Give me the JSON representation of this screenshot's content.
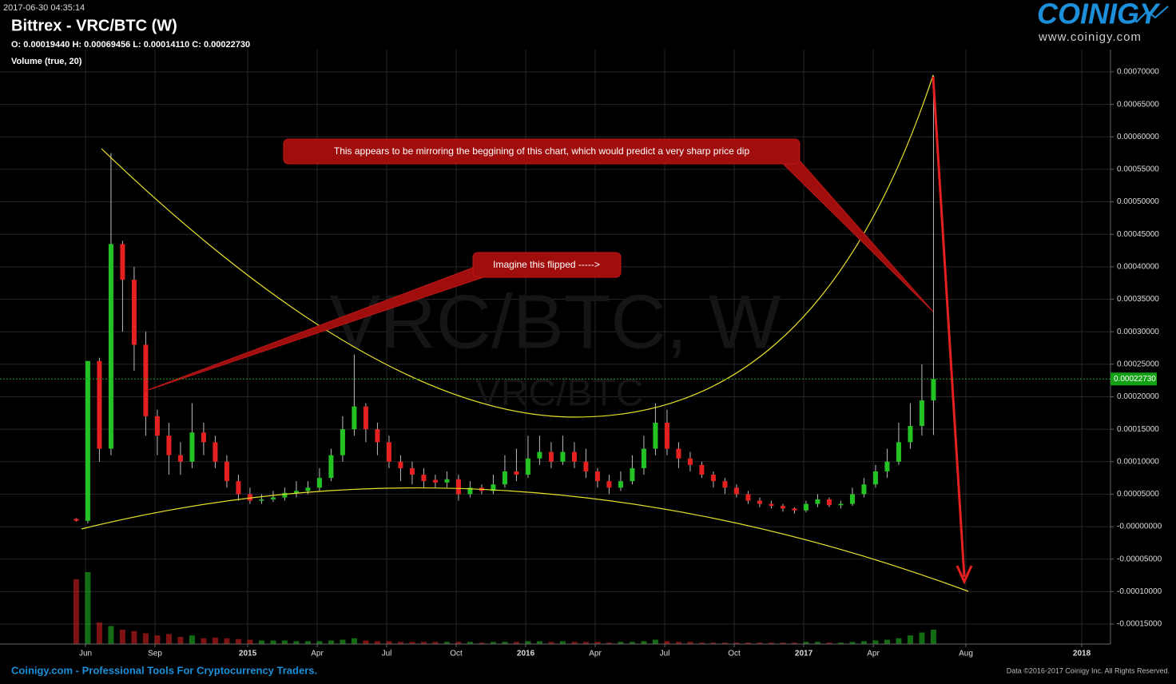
{
  "chart_data": {
    "type": "candlestick",
    "timestamp": "2017-06-30 04:35:14",
    "title": "Bittrex - VRC/BTC (W)",
    "ohlc_text": "O: 0.00019440 H: 0.00069456 L: 0.00014110 C: 0.00022730",
    "volume_label": "Volume (true, 20)",
    "watermark": "VRC/BTC, W",
    "watermark_sub": "VRC/BTC",
    "logo": "COINIGY",
    "logo_url": "www.coinigy.com",
    "footer_left": "Coinigy.com - Professional Tools For Cryptocurrency Traders.",
    "footer_right": "Data ©2016-2017 Coinigy Inc. All Rights Reserved.",
    "annotations": [
      "This appears to be mirroring the beggining of this chart, which would predict a very sharp price dip",
      "Imagine this flipped  ----->"
    ],
    "last_price_label": "0.00022730",
    "up_color": "#22c322",
    "down_color": "#e52020",
    "grid": true,
    "xlim": [
      1.31,
      49.24
    ],
    "ylim": [
      -0.0001807,
      0.0007344
    ],
    "xticks": [
      {
        "value": 5,
        "label": "Jun"
      },
      {
        "value": 8,
        "label": "Sep"
      },
      {
        "value": 12,
        "label": "2015"
      },
      {
        "value": 15,
        "label": "Apr"
      },
      {
        "value": 18,
        "label": "Jul"
      },
      {
        "value": 21,
        "label": "Oct"
      },
      {
        "value": 24,
        "label": "2016"
      },
      {
        "value": 27,
        "label": "Apr"
      },
      {
        "value": 30,
        "label": "Jul"
      },
      {
        "value": 33,
        "label": "Oct"
      },
      {
        "value": 36,
        "label": "2017"
      },
      {
        "value": 39,
        "label": "Apr"
      },
      {
        "value": 43,
        "label": "Aug"
      },
      {
        "value": 48,
        "label": "2018"
      }
    ],
    "yticks": [
      {
        "value": 0.0007,
        "label": "0.00070000"
      },
      {
        "value": 0.00065,
        "label": "0.00065000"
      },
      {
        "value": 0.0006,
        "label": "0.00060000"
      },
      {
        "value": 0.00055,
        "label": "0.00055000"
      },
      {
        "value": 0.0005,
        "label": "0.00050000"
      },
      {
        "value": 0.00045,
        "label": "0.00045000"
      },
      {
        "value": 0.0004,
        "label": "0.00040000"
      },
      {
        "value": 0.00035,
        "label": "0.00035000"
      },
      {
        "value": 0.0003,
        "label": "0.00030000"
      },
      {
        "value": 0.00025,
        "label": "0.00025000"
      },
      {
        "value": 0.0002,
        "label": "0.00020000"
      },
      {
        "value": 0.00015,
        "label": "0.00015000"
      },
      {
        "value": 0.0001,
        "label": "0.00010000"
      },
      {
        "value": 5e-05,
        "label": "0.00005000"
      },
      {
        "value": 0,
        "label": "-0.00000000"
      },
      {
        "value": -5e-05,
        "label": "-0.00005000"
      },
      {
        "value": -0.0001,
        "label": "-0.00010000"
      },
      {
        "value": -0.00015,
        "label": "-0.00015000"
      }
    ],
    "candles": [
      [
        4.6,
        1.2e-05,
        1.3e-05,
        8e-06,
        9e-06,
        90
      ],
      [
        5.1,
        9e-06,
        0.000255,
        5e-06,
        0.000255,
        100
      ],
      [
        5.6,
        0.000255,
        0.00026,
        0.0001,
        0.00012,
        30
      ],
      [
        6.1,
        0.00012,
        0.000575,
        0.00011,
        0.000435,
        25
      ],
      [
        6.6,
        0.000435,
        0.00044,
        0.0003,
        0.00038,
        20
      ],
      [
        7.1,
        0.00038,
        0.0004,
        0.00024,
        0.00028,
        18
      ],
      [
        7.6,
        0.00028,
        0.0003,
        0.00014,
        0.00017,
        15
      ],
      [
        8.1,
        0.00017,
        0.00018,
        0.00011,
        0.00014,
        12
      ],
      [
        8.6,
        0.00014,
        0.00016,
        8e-05,
        0.00011,
        14
      ],
      [
        9.1,
        0.00011,
        0.00013,
        8e-05,
        0.0001,
        10
      ],
      [
        9.6,
        0.0001,
        0.00019,
        9e-05,
        0.000145,
        12
      ],
      [
        10.1,
        0.000145,
        0.00016,
        0.00011,
        0.00013,
        8
      ],
      [
        10.6,
        0.00013,
        0.00014,
        9e-05,
        0.0001,
        9
      ],
      [
        11.1,
        0.0001,
        0.00011,
        6e-05,
        7e-05,
        8
      ],
      [
        11.6,
        7e-05,
        8e-05,
        4e-05,
        5e-05,
        7
      ],
      [
        12.1,
        5e-05,
        6e-05,
        3.5e-05,
        4e-05,
        6
      ],
      [
        12.6,
        4e-05,
        5e-05,
        3.5e-05,
        4.2e-05,
        5
      ],
      [
        13.1,
        4.2e-05,
        5.5e-05,
        3.8e-05,
        4.5e-05,
        5
      ],
      [
        13.6,
        4.5e-05,
        6e-05,
        4e-05,
        5.2e-05,
        5
      ],
      [
        14.1,
        5.2e-05,
        7e-05,
        4.5e-05,
        5.5e-05,
        4
      ],
      [
        14.6,
        5.5e-05,
        7e-05,
        5e-05,
        6e-05,
        4
      ],
      [
        15.1,
        6e-05,
        9e-05,
        5.5e-05,
        7.5e-05,
        4
      ],
      [
        15.6,
        7.5e-05,
        0.00012,
        7e-05,
        0.00011,
        5
      ],
      [
        16.1,
        0.00011,
        0.00017,
        0.0001,
        0.00015,
        6
      ],
      [
        16.6,
        0.00015,
        0.000265,
        0.00014,
        0.000185,
        8
      ],
      [
        17.1,
        0.000185,
        0.00019,
        0.00013,
        0.00015,
        5
      ],
      [
        17.6,
        0.00015,
        0.00016,
        0.00011,
        0.00013,
        4
      ],
      [
        18.1,
        0.00013,
        0.00014,
        9e-05,
        0.0001,
        4
      ],
      [
        18.6,
        0.0001,
        0.00011,
        7e-05,
        9e-05,
        3
      ],
      [
        19.1,
        9e-05,
        0.0001,
        6.5e-05,
        8e-05,
        3
      ],
      [
        19.6,
        8e-05,
        9e-05,
        6e-05,
        7e-05,
        3
      ],
      [
        20.1,
        7.2e-05,
        8e-05,
        6e-05,
        6.8e-05,
        3
      ],
      [
        20.6,
        6.8e-05,
        8.5e-05,
        6e-05,
        7.3e-05,
        3
      ],
      [
        21.1,
        7.3e-05,
        8e-05,
        4e-05,
        5e-05,
        3
      ],
      [
        21.6,
        5e-05,
        7e-05,
        4.5e-05,
        6e-05,
        3
      ],
      [
        22.1,
        6e-05,
        6.5e-05,
        5e-05,
        5.5e-05,
        2
      ],
      [
        22.6,
        5.5e-05,
        8e-05,
        5e-05,
        6.5e-05,
        3
      ],
      [
        23.1,
        6.5e-05,
        0.00011,
        6e-05,
        8.5e-05,
        3
      ],
      [
        23.6,
        8.5e-05,
        0.00012,
        7e-05,
        8e-05,
        3
      ],
      [
        24.1,
        8e-05,
        0.00014,
        7.5e-05,
        0.000105,
        4
      ],
      [
        24.6,
        0.000105,
        0.00014,
        9.5e-05,
        0.000115,
        4
      ],
      [
        25.1,
        0.000115,
        0.00013,
        9e-05,
        0.0001,
        3
      ],
      [
        25.6,
        0.0001,
        0.00014,
        9.5e-05,
        0.000115,
        4
      ],
      [
        26.1,
        0.000115,
        0.00013,
        9e-05,
        0.0001,
        3
      ],
      [
        26.6,
        0.0001,
        0.00012,
        7.5e-05,
        8.5e-05,
        3
      ],
      [
        27.1,
        8.5e-05,
        9e-05,
        6e-05,
        7e-05,
        3
      ],
      [
        27.6,
        7e-05,
        8e-05,
        5e-05,
        6e-05,
        2
      ],
      [
        28.1,
        6e-05,
        8.5e-05,
        5.5e-05,
        7e-05,
        3
      ],
      [
        28.6,
        7e-05,
        0.00011,
        6.5e-05,
        9e-05,
        3
      ],
      [
        29.1,
        9e-05,
        0.00014,
        8e-05,
        0.00012,
        4
      ],
      [
        29.6,
        0.00012,
        0.00019,
        0.00011,
        0.00016,
        6
      ],
      [
        30.1,
        0.00016,
        0.00018,
        0.00011,
        0.00012,
        4
      ],
      [
        30.6,
        0.00012,
        0.00013,
        9e-05,
        0.000105,
        3
      ],
      [
        31.1,
        0.000105,
        0.000115,
        8.5e-05,
        9.5e-05,
        3
      ],
      [
        31.6,
        9.5e-05,
        0.0001,
        7.5e-05,
        8e-05,
        2
      ],
      [
        32.1,
        8e-05,
        8.5e-05,
        6e-05,
        7e-05,
        2
      ],
      [
        32.6,
        7e-05,
        7.5e-05,
        5e-05,
        6e-05,
        2
      ],
      [
        33.1,
        6e-05,
        6.5e-05,
        4.5e-05,
        5e-05,
        2
      ],
      [
        33.6,
        5e-05,
        5.5e-05,
        3.5e-05,
        4e-05,
        2
      ],
      [
        34.1,
        4e-05,
        4.5e-05,
        3e-05,
        3.5e-05,
        2
      ],
      [
        34.6,
        3.5e-05,
        4e-05,
        2.8e-05,
        3.2e-05,
        2
      ],
      [
        35.1,
        3.2e-05,
        3.5e-05,
        2.3e-05,
        2.8e-05,
        2
      ],
      [
        35.6,
        2.8e-05,
        3e-05,
        2e-05,
        2.5e-05,
        2
      ],
      [
        36.1,
        2.5e-05,
        4e-05,
        2.2e-05,
        3.5e-05,
        3
      ],
      [
        36.6,
        3.5e-05,
        5e-05,
        3e-05,
        4.2e-05,
        3
      ],
      [
        37.1,
        4.2e-05,
        4.5e-05,
        3e-05,
        3.3e-05,
        2
      ],
      [
        37.6,
        3.3e-05,
        4e-05,
        2.8e-05,
        3.5e-05,
        2
      ],
      [
        38.1,
        3.5e-05,
        6e-05,
        3.2e-05,
        5e-05,
        3
      ],
      [
        38.6,
        5e-05,
        7.5e-05,
        4.5e-05,
        6.5e-05,
        4
      ],
      [
        39.1,
        6.5e-05,
        9.5e-05,
        6e-05,
        8.5e-05,
        5
      ],
      [
        39.6,
        8.5e-05,
        0.00012,
        7.5e-05,
        0.0001,
        6
      ],
      [
        40.1,
        0.0001,
        0.00016,
        9.5e-05,
        0.00013,
        8
      ],
      [
        40.6,
        0.00013,
        0.00019,
        0.00012,
        0.000155,
        12
      ],
      [
        41.1,
        0.000155,
        0.00025,
        0.00014,
        0.0001944,
        16
      ],
      [
        41.6,
        0.0001944,
        0.00069456,
        0.0001411,
        0.0002273,
        20
      ]
    ]
  }
}
